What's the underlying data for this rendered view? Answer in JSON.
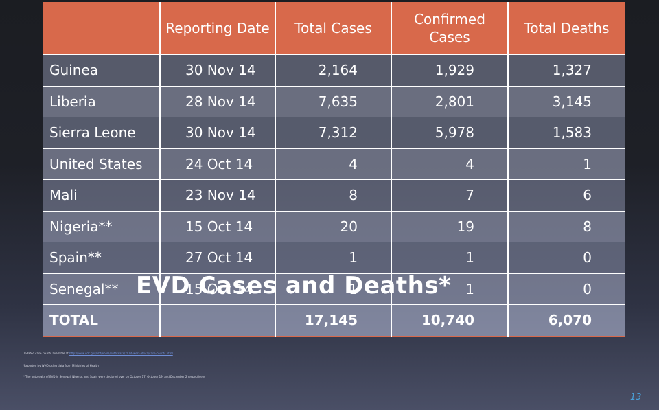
{
  "table": {
    "headers": [
      "",
      "Reporting Date",
      "Total Cases",
      "Confirmed Cases",
      "Total Deaths"
    ],
    "rows": [
      {
        "country": "Guinea",
        "date": "30 Nov 14",
        "total_cases": "2,164",
        "confirmed_cases": "1,929",
        "total_deaths": "1,327"
      },
      {
        "country": "Liberia",
        "date": "28 Nov 14",
        "total_cases": "7,635",
        "confirmed_cases": "2,801",
        "total_deaths": "3,145"
      },
      {
        "country": "Sierra Leone",
        "date": "30 Nov 14",
        "total_cases": "7,312",
        "confirmed_cases": "5,978",
        "total_deaths": "1,583"
      },
      {
        "country": "United States",
        "date": "24 Oct 14",
        "total_cases": "4",
        "confirmed_cases": "4",
        "total_deaths": "1"
      },
      {
        "country": "Mali",
        "date": "23 Nov 14",
        "total_cases": "8",
        "confirmed_cases": "7",
        "total_deaths": "6"
      },
      {
        "country": "Nigeria**",
        "date": "15 Oct 14",
        "total_cases": "20",
        "confirmed_cases": "19",
        "total_deaths": "8"
      },
      {
        "country": "Spain**",
        "date": "27 Oct 14",
        "total_cases": "1",
        "confirmed_cases": "1",
        "total_deaths": "0"
      },
      {
        "country": "Senegal**",
        "date": "15 Oct 14",
        "total_cases": "1",
        "confirmed_cases": "1",
        "total_deaths": "0"
      }
    ],
    "total": {
      "label": "TOTAL",
      "total_cases": "17,145",
      "confirmed_cases": "10,740",
      "total_deaths": "6,070"
    }
  },
  "overlay_title": "EVD Cases and Deaths*",
  "footnotes": {
    "updated_prefix": "Updated case counts available at",
    "updated_link": "http://www.cdc.gov/vhf/ebola/outbreaks/2014-west-africa/case-counts.html",
    "updated_suffix": ".",
    "reported": "*Reported by WHO using data from Ministries of Health",
    "outbreaks": "**The outbreaks of EVD in Senegal, Nigeria, and Spain were declared over on October 17, October 19, and December 2 respectively."
  },
  "slide_number": "13",
  "colors": {
    "header_bg": "#d8694b",
    "slide_number": "#4aa0d8",
    "link": "#6f8fd8"
  }
}
